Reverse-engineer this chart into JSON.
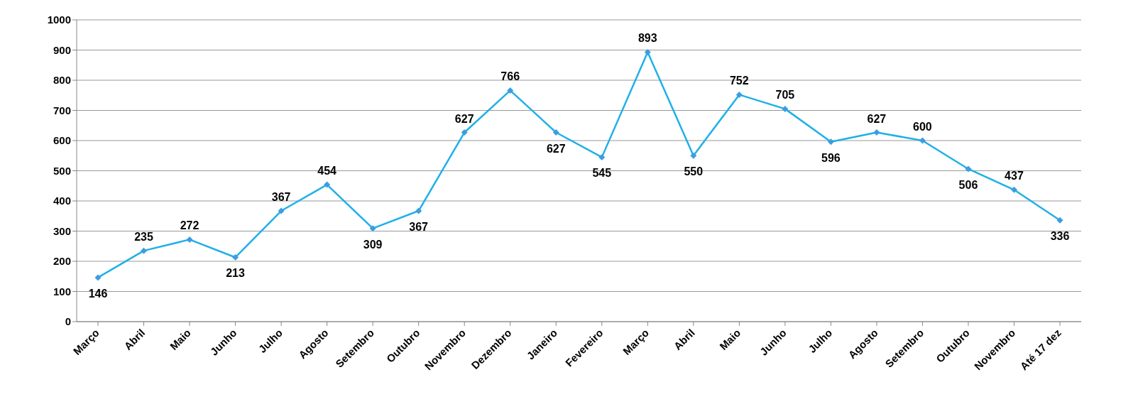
{
  "chart_data": {
    "type": "line",
    "categories": [
      "Março",
      "Abril",
      "Maio",
      "Junho",
      "Julho",
      "Agosto",
      "Setembro",
      "Outubro",
      "Novembro",
      "Dezembro",
      "Janeiro",
      "Fevereiro",
      "Março",
      "Abril",
      "Maio",
      "Junho",
      "Julho",
      "Agosto",
      "Setembro",
      "Outubro",
      "Novembro",
      "Até 17 dez"
    ],
    "series": [
      {
        "color": "#1fb0e8",
        "values": [
          146,
          235,
          272,
          213,
          367,
          454,
          309,
          367,
          627,
          766,
          627,
          545,
          893,
          550,
          752,
          705,
          596,
          627,
          600,
          506,
          437,
          336
        ]
      }
    ],
    "ylim": [
      0,
      1000
    ],
    "yticks": [
      0,
      100,
      200,
      300,
      400,
      500,
      600,
      700,
      800,
      900,
      1000
    ],
    "grid": "y",
    "marker": "diamond",
    "data_labels": true
  }
}
